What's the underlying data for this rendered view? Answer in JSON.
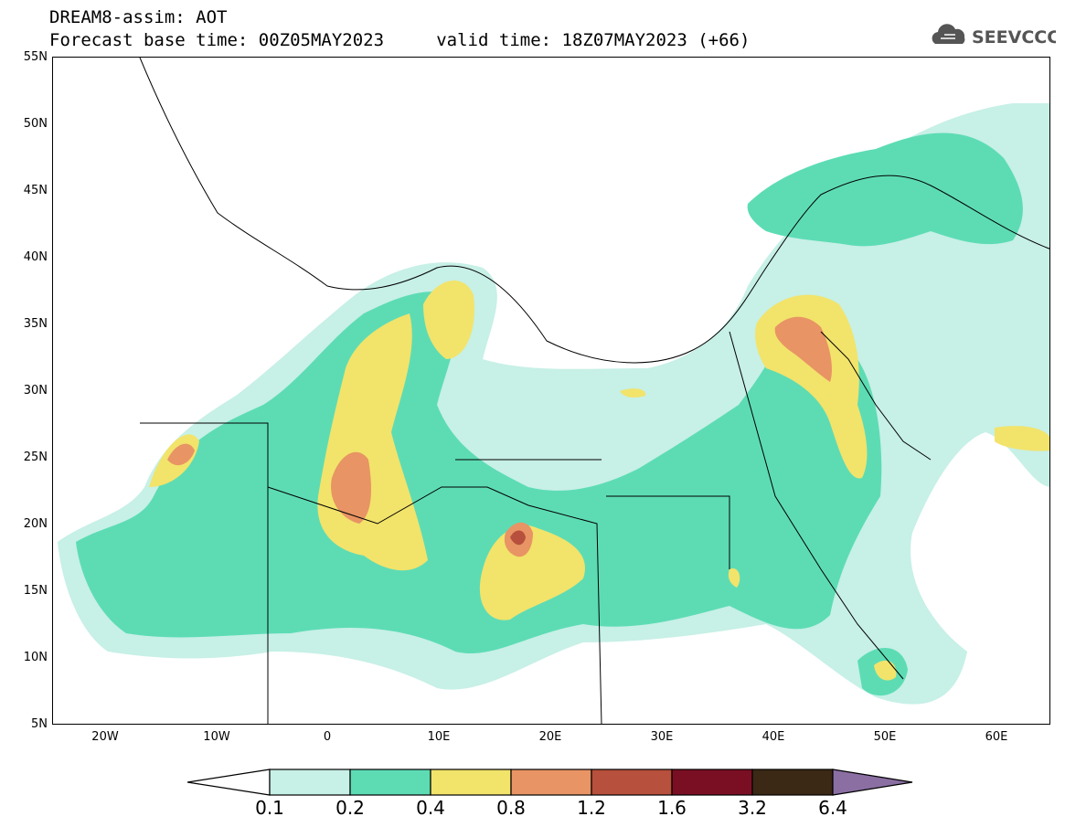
{
  "header": {
    "title_line1": "DREAM8-assim: AOT",
    "title_line2": "Forecast base time: 00Z05MAY2023     valid time: 18Z07MAY2023 (+66)",
    "logo_text": "SEEVCCC"
  },
  "map": {
    "lat_ticks": [
      "55N",
      "50N",
      "45N",
      "40N",
      "35N",
      "30N",
      "25N",
      "20N",
      "15N",
      "10N",
      "5N"
    ],
    "lon_ticks": [
      "20W",
      "10W",
      "0",
      "10E",
      "20E",
      "30E",
      "40E",
      "50E",
      "60E"
    ],
    "colors": {
      "land_bg": "#ffffff",
      "c01": "#c7f0e6",
      "c02": "#5ddcb4",
      "c04": "#f2e36b",
      "c08": "#e89464",
      "c12": "#b7503c",
      "c16": "#7a0f23",
      "c32": "#3b2815",
      "c64": "#8b6fa3",
      "border": "#000000"
    }
  },
  "colorbar": {
    "labels": [
      "0.1",
      "0.2",
      "0.4",
      "0.8",
      "1.2",
      "1.6",
      "3.2",
      "6.4"
    ]
  }
}
